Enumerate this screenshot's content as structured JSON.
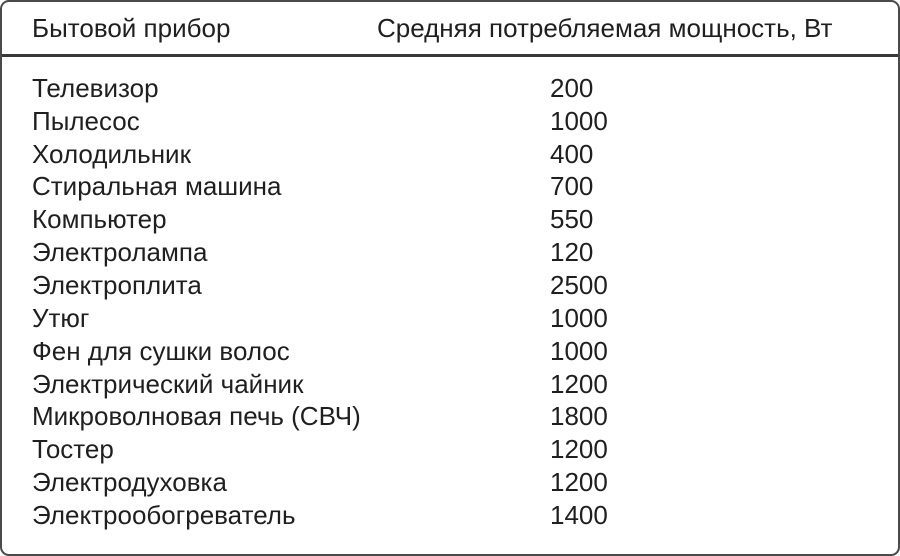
{
  "table": {
    "title_semantic": "appliance-average-power-consumption",
    "columns": [
      {
        "label": "Бытовой прибор"
      },
      {
        "label": "Средняя потребляемая мощность, Вт"
      }
    ],
    "rows": [
      {
        "appliance": "Телевизор",
        "power": "200"
      },
      {
        "appliance": "Пылесос",
        "power": "1000"
      },
      {
        "appliance": "Холодильник",
        "power": "400"
      },
      {
        "appliance": "Стиральная машина",
        "power": "700"
      },
      {
        "appliance": "Компьютер",
        "power": "550"
      },
      {
        "appliance": "Электролампа",
        "power": "120"
      },
      {
        "appliance": "Электроплита",
        "power": "2500"
      },
      {
        "appliance": "Утюг",
        "power": "1000"
      },
      {
        "appliance": "Фен для сушки волос",
        "power": "1000"
      },
      {
        "appliance": "Электрический чайник",
        "power": "1200"
      },
      {
        "appliance": "Микроволновая печь (СВЧ)",
        "power": "1800"
      },
      {
        "appliance": "Тостер",
        "power": "1200"
      },
      {
        "appliance": "Электродуховка",
        "power": "1200"
      },
      {
        "appliance": "Электрообогреватель",
        "power": "1400"
      }
    ]
  },
  "colors": {
    "background": "#ffffff",
    "border": "#4a4a4a",
    "separator": "#383838",
    "text": "#1f1f1f"
  }
}
